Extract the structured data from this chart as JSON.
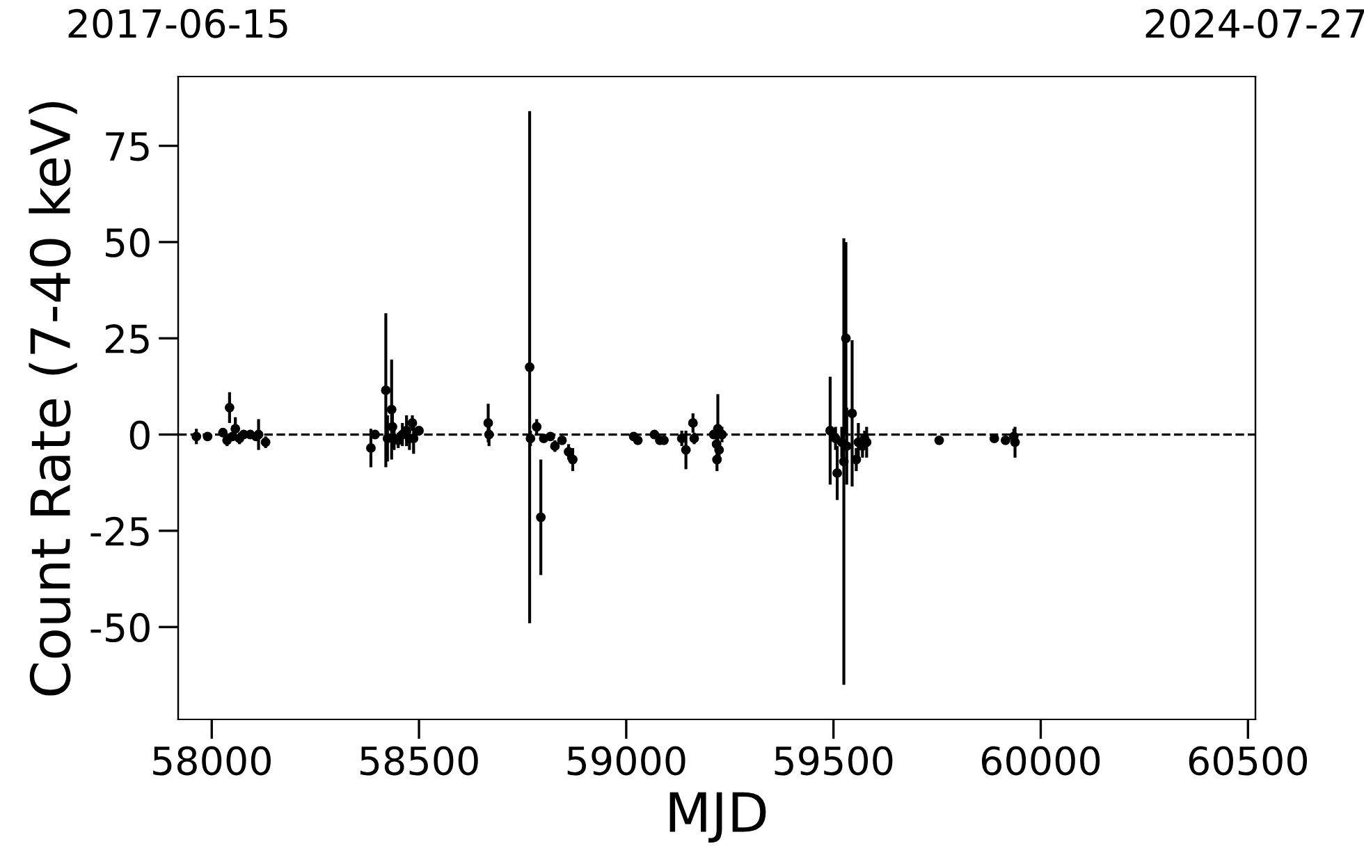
{
  "chart_data": {
    "type": "scatter",
    "xlabel": "MJD",
    "ylabel": "Count Rate (7-40 keV)",
    "xlim": [
      57919,
      60518
    ],
    "xticks": [
      58000,
      58500,
      59000,
      59500,
      60000,
      60500
    ],
    "ylim": [
      -74,
      93
    ],
    "yticks": [
      -50,
      -25,
      0,
      25,
      50,
      75
    ],
    "x2lim": [
      "2017-06-15",
      "2024-07-27"
    ],
    "x2ticks": [
      "2017-06-15",
      "2024-07-27"
    ],
    "marker": "circle",
    "grid": false,
    "ref_lines": [
      {
        "axis": "y",
        "value": 0,
        "label": null,
        "color": "#000000",
        "line_style": "dashed"
      }
    ],
    "series": [
      {
        "color": "#000000",
        "x": [
          57963,
          57990,
          58027,
          58043,
          58037,
          58050,
          58057,
          58067,
          58077,
          58093,
          58107,
          58113,
          58130,
          58384,
          58394,
          58420,
          58424,
          58434,
          58436,
          58440,
          58450,
          58460,
          58470,
          58477,
          58484,
          58487,
          58500,
          58667,
          58669,
          58767,
          58769,
          58784,
          58794,
          58801,
          58817,
          58828,
          58845,
          58861,
          58871,
          59018,
          59028,
          59068,
          59081,
          59091,
          59134,
          59144,
          59161,
          59164,
          59211,
          59218,
          59221,
          59219,
          59224,
          59231,
          59492,
          59505,
          59509,
          59520,
          59525,
          59530,
          59532,
          59545,
          59555,
          59560,
          59570,
          59575,
          59580,
          59755,
          59888,
          59915,
          59935,
          59938
        ],
        "values": [
          -0.5,
          -0.5,
          0.5,
          7,
          -1.5,
          -0.5,
          1.5,
          -1,
          0,
          0,
          -0.5,
          0,
          -2,
          -3.5,
          0,
          11.5,
          -1,
          6.5,
          2,
          -1,
          -1.5,
          0,
          1,
          -1,
          3,
          -1,
          1,
          3,
          0,
          17.5,
          -1,
          2,
          -21.5,
          -1,
          -0.5,
          -3,
          -1.5,
          -4.5,
          -6.5,
          -0.5,
          -1.5,
          0,
          -1.5,
          -1.5,
          -1,
          -4,
          3,
          -1,
          0,
          -2.5,
          1.5,
          -6.5,
          -4,
          0,
          1,
          -1,
          -10,
          -2,
          -7,
          25,
          -3,
          5.5,
          -6.5,
          -2,
          -3,
          -1,
          -2,
          -1.5,
          -1,
          -1.5,
          -0.5,
          -2
        ],
        "errors": [
          2,
          1,
          1,
          4,
          1.5,
          1,
          3,
          1.5,
          1,
          1,
          1,
          4,
          1.5,
          5,
          1,
          20,
          6,
          13,
          5,
          3,
          2,
          3,
          4,
          3,
          2,
          4,
          1,
          5,
          3,
          66.5,
          2,
          2,
          15,
          1,
          1,
          1.5,
          1,
          2,
          3,
          1,
          1,
          1,
          1,
          1,
          2,
          5,
          2.5,
          1.5,
          1,
          2,
          9,
          3,
          2,
          2,
          14,
          3,
          7,
          4,
          58,
          25,
          10,
          19,
          3,
          5,
          3,
          2,
          4,
          1,
          0.5,
          1,
          2,
          4
        ]
      }
    ]
  }
}
